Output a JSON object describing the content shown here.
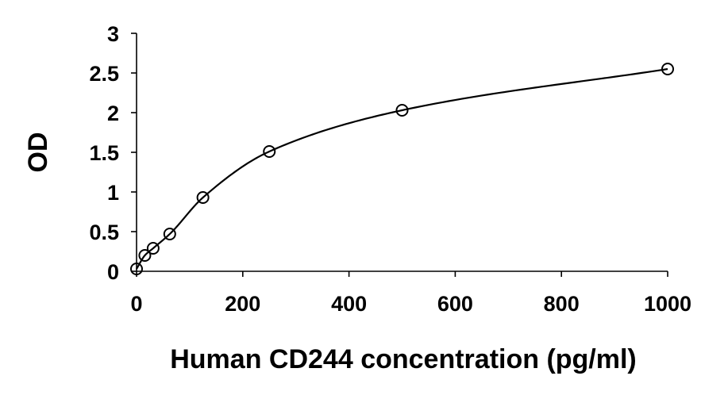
{
  "chart_data": {
    "type": "scatter",
    "title": "",
    "xlabel": "Human CD244 concentration (pg/ml)",
    "ylabel": "OD",
    "xlim": [
      0,
      1000
    ],
    "ylim": [
      0,
      3
    ],
    "x_ticks": [
      0,
      200,
      400,
      600,
      800,
      1000
    ],
    "y_ticks": [
      0,
      0.5,
      1,
      1.5,
      2,
      2.5,
      3
    ],
    "x_tick_labels": [
      "0",
      "200",
      "400",
      "600",
      "800",
      "1000"
    ],
    "y_tick_labels": [
      "0",
      "0.5",
      "1",
      "1.5",
      "2",
      "2.5",
      "3"
    ],
    "grid": false,
    "legend": "none",
    "series": [
      {
        "marker": "open-circle",
        "x": [
          0,
          15.6,
          31.25,
          62.5,
          125,
          250,
          500,
          1000
        ],
        "values": [
          0.03,
          0.2,
          0.29,
          0.47,
          0.93,
          1.51,
          2.03,
          2.55
        ],
        "fit_curve": "smooth"
      }
    ],
    "colors": {
      "line": "#000000",
      "marker_stroke": "#000000",
      "background": "#ffffff"
    }
  }
}
